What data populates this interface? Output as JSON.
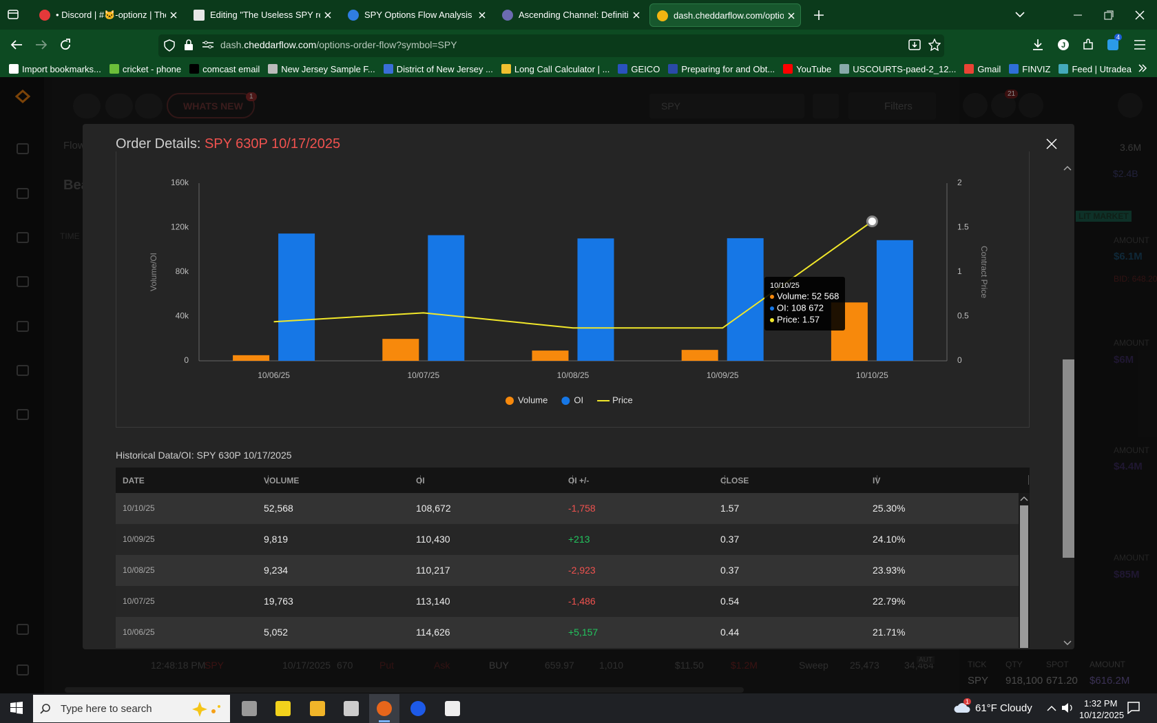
{
  "browser": {
    "tabs": [
      "• Discord | #🐱-optionz | The U",
      "Editing \"The Useless SPY report",
      "SPY Options Flow Analysis - Re",
      "Ascending Channel: Definition,",
      "dash.cheddarflow.com/options-"
    ],
    "url": {
      "prefix": "dash.",
      "domain": "cheddarflow.com",
      "path": "/options-order-flow?symbol=SPY"
    },
    "extension_badge": "4",
    "bookmarks": [
      "Import bookmarks...",
      "cricket - phone",
      "comcast email",
      "New Jersey Sample F...",
      "District of New Jersey ...",
      "Long Call Calculator | ...",
      "GEICO",
      "Preparing for and Obt...",
      "YouTube",
      "USCOURTS-paed-2_12...",
      "Gmail",
      "FINVIZ",
      "Feed | Utradea"
    ]
  },
  "app": {
    "whats_new": "WHATS NEW",
    "whats_new_badge": "1",
    "search": "SPY",
    "filters": "Filters",
    "notification_badge": "21",
    "nav_fragments": [
      "Flow",
      "Bea",
      "TIME"
    ],
    "right_panel": {
      "total": "3.6M",
      "total2": "$2.4B",
      "lit_market": "LIT MARKET",
      "cards": [
        {
          "label": "AMOUNT",
          "value": "$6.1M",
          "bid": "BID: 648.20"
        },
        {
          "label": "AMOUNT",
          "value": "$6M"
        },
        {
          "label": "AMOUNT",
          "value": "$4.4M"
        },
        {
          "label": "AMOUNT",
          "value": "$85M"
        }
      ],
      "footer_headers": [
        "TICK",
        "QTY",
        "SPOT",
        "AMOUNT"
      ],
      "footer_values": [
        "SPY",
        "918,100",
        "671.20",
        "$616.2M"
      ]
    },
    "bottom_row": [
      "12:48:18 PM",
      "SPY",
      "10/17/2025",
      "670",
      "Put",
      "Ask",
      "BUY",
      "659.97",
      "1,010",
      "$11.50",
      "$1.2M",
      "Sweep",
      "25,473",
      "34,464"
    ],
    "bottom_tag": "AUT"
  },
  "modal": {
    "title": "Order Details:",
    "symbol": "SPY 630P 10/17/2025"
  },
  "chart_data": {
    "type": "bar",
    "categories": [
      "10/06/25",
      "10/07/25",
      "10/08/25",
      "10/09/25",
      "10/10/25"
    ],
    "series": [
      {
        "name": "Volume",
        "color": "#f7890c",
        "values": [
          5052,
          19763,
          9234,
          9819,
          52568
        ]
      },
      {
        "name": "OI",
        "color": "#1677e6",
        "values": [
          114626,
          113140,
          110217,
          110430,
          108672
        ]
      },
      {
        "name": "Price",
        "color": "#f2e82a",
        "type": "line",
        "axis": "y2",
        "values": [
          0.44,
          0.54,
          0.37,
          0.37,
          1.57
        ]
      }
    ],
    "ylabel": "Volume/OI",
    "y2label": "Contract Price",
    "ylim": [
      0,
      160000
    ],
    "yticks": [
      {
        "value": 0,
        "label": "0"
      },
      {
        "value": 40000,
        "label": "40k"
      },
      {
        "value": 80000,
        "label": "80k"
      },
      {
        "value": 120000,
        "label": "120k"
      },
      {
        "value": 160000,
        "label": "160k"
      }
    ],
    "y2lim": [
      0,
      2
    ],
    "y2ticks": [
      0,
      0.5,
      1,
      1.5,
      2
    ],
    "grid": false,
    "tooltip": {
      "title": "10/10/25",
      "lines": [
        "Volume: 52 568",
        "OI: 108 672",
        "Price: 1.57"
      ]
    }
  },
  "table": {
    "title": "Historical Data/OI: SPY 630P 10/17/2025",
    "columns": [
      "DATE",
      "VOLUME",
      "OI",
      "OI +/-",
      "CLOSE",
      "IV"
    ],
    "rows": [
      [
        "10/10/25",
        "52,568",
        "108,672",
        "-1,758",
        "1.57",
        "25.30%"
      ],
      [
        "10/09/25",
        "9,819",
        "110,430",
        "+213",
        "0.37",
        "24.10%"
      ],
      [
        "10/08/25",
        "9,234",
        "110,217",
        "-2,923",
        "0.37",
        "23.93%"
      ],
      [
        "10/07/25",
        "19,763",
        "113,140",
        "-1,486",
        "0.54",
        "22.79%"
      ],
      [
        "10/06/25",
        "5,052",
        "114,626",
        "+5,157",
        "0.44",
        "21.71%"
      ]
    ]
  },
  "taskbar": {
    "search": "Type here to search",
    "weather": "61°F Cloudy",
    "weather_badge": "1",
    "time": "1:32 PM",
    "date": "10/12/2025"
  }
}
